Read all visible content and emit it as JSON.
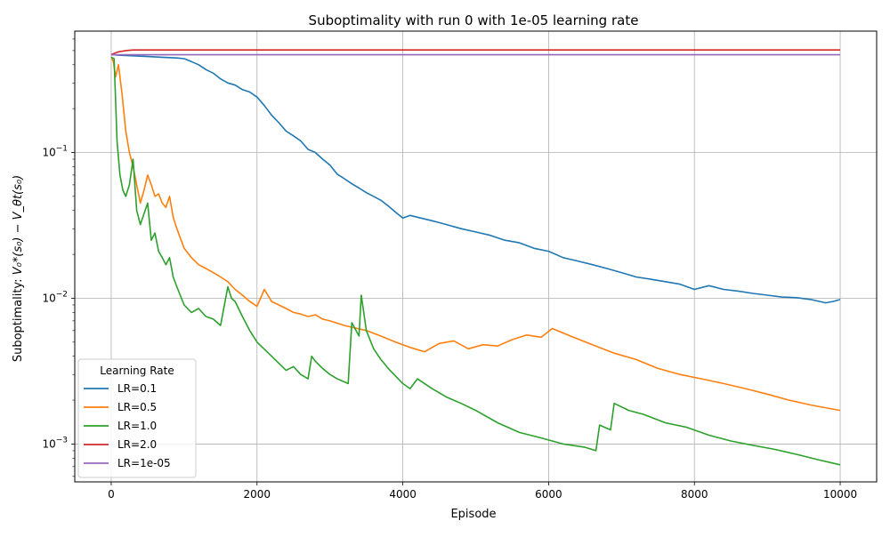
{
  "chart_data": {
    "type": "line",
    "title": "Suboptimality with run 0 with 1e-05 learning rate",
    "xlabel": "Episode",
    "ylabel_parts": {
      "prefix": "Suboptimality: ",
      "formula": "V₀*(s₀) − V_θt(s₀)"
    },
    "x_ticks": [
      0,
      2000,
      4000,
      6000,
      8000,
      10000
    ],
    "x_tick_labels": [
      "0",
      "2000",
      "4000",
      "6000",
      "8000",
      "10000"
    ],
    "y_scale": "log",
    "y_ticks": [
      0.001,
      0.01,
      0.1
    ],
    "y_tick_labels": [
      {
        "base": "10",
        "exp": "−3"
      },
      {
        "base": "10",
        "exp": "−2"
      },
      {
        "base": "10",
        "exp": "−1"
      }
    ],
    "xlim": [
      -500,
      10500
    ],
    "ylim": [
      0.00055,
      0.68
    ],
    "grid": true,
    "legend": {
      "title": "Learning Rate",
      "placement": "lower-left"
    },
    "series": [
      {
        "name": "LR=0.1",
        "color": "#1f77b4",
        "x": [
          0,
          100,
          300,
          500,
          700,
          900,
          1000,
          1100,
          1200,
          1300,
          1400,
          1500,
          1600,
          1700,
          1800,
          1900,
          2000,
          2100,
          2200,
          2300,
          2400,
          2500,
          2600,
          2700,
          2800,
          2900,
          3000,
          3100,
          3200,
          3300,
          3400,
          3500,
          3600,
          3700,
          3800,
          3900,
          4000,
          4100,
          4200,
          4300,
          4400,
          4500,
          4600,
          4800,
          5000,
          5200,
          5400,
          5600,
          5800,
          6000,
          6200,
          6400,
          6600,
          6800,
          7000,
          7200,
          7400,
          7600,
          7800,
          8000,
          8200,
          8400,
          8600,
          8800,
          9000,
          9200,
          9400,
          9600,
          9800,
          9900,
          10000
        ],
        "y": [
          0.47,
          0.465,
          0.46,
          0.455,
          0.45,
          0.445,
          0.44,
          0.42,
          0.4,
          0.37,
          0.35,
          0.32,
          0.3,
          0.29,
          0.27,
          0.26,
          0.24,
          0.21,
          0.18,
          0.16,
          0.14,
          0.13,
          0.12,
          0.105,
          0.1,
          0.09,
          0.082,
          0.071,
          0.066,
          0.061,
          0.057,
          0.053,
          0.05,
          0.047,
          0.043,
          0.039,
          0.0355,
          0.037,
          0.036,
          0.035,
          0.034,
          0.033,
          0.032,
          0.03,
          0.0285,
          0.027,
          0.025,
          0.024,
          0.022,
          0.021,
          0.019,
          0.018,
          0.017,
          0.016,
          0.015,
          0.014,
          0.0135,
          0.013,
          0.0125,
          0.0115,
          0.0122,
          0.0115,
          0.0112,
          0.0108,
          0.0105,
          0.0102,
          0.0101,
          0.0098,
          0.0093,
          0.0095,
          0.0098
        ]
      },
      {
        "name": "LR=0.5",
        "color": "#ff7f0e",
        "x": [
          0,
          30,
          60,
          100,
          150,
          200,
          250,
          300,
          350,
          400,
          450,
          500,
          550,
          600,
          650,
          700,
          750,
          800,
          850,
          900,
          1000,
          1100,
          1200,
          1300,
          1400,
          1500,
          1600,
          1700,
          1800,
          1900,
          2000,
          2100,
          2200,
          2300,
          2400,
          2500,
          2600,
          2700,
          2800,
          2900,
          3000,
          3200,
          3500,
          3700,
          3900,
          4100,
          4300,
          4500,
          4700,
          4900,
          5100,
          5300,
          5500,
          5700,
          5900,
          6050,
          6300,
          6600,
          6900,
          7200,
          7500,
          7800,
          8100,
          8400,
          8700,
          9000,
          9300,
          9600,
          10000
        ],
        "y": [
          0.45,
          0.42,
          0.33,
          0.4,
          0.25,
          0.14,
          0.1,
          0.08,
          0.06,
          0.045,
          0.055,
          0.07,
          0.06,
          0.05,
          0.052,
          0.045,
          0.042,
          0.05,
          0.036,
          0.03,
          0.022,
          0.019,
          0.017,
          0.016,
          0.015,
          0.014,
          0.013,
          0.0115,
          0.0105,
          0.0095,
          0.0088,
          0.0115,
          0.0095,
          0.009,
          0.0085,
          0.008,
          0.0078,
          0.0075,
          0.0077,
          0.0072,
          0.007,
          0.0065,
          0.006,
          0.0055,
          0.005,
          0.0046,
          0.0043,
          0.0049,
          0.0051,
          0.0045,
          0.0048,
          0.0047,
          0.0052,
          0.0056,
          0.0054,
          0.0062,
          0.0055,
          0.0048,
          0.0042,
          0.0038,
          0.0033,
          0.003,
          0.0028,
          0.0026,
          0.0024,
          0.0022,
          0.002,
          0.00185,
          0.0017
        ]
      },
      {
        "name": "LR=1.0",
        "color": "#2ca02c",
        "x": [
          0,
          40,
          80,
          120,
          160,
          200,
          250,
          300,
          350,
          400,
          450,
          500,
          550,
          600,
          650,
          700,
          750,
          800,
          850,
          900,
          1000,
          1100,
          1200,
          1300,
          1400,
          1500,
          1600,
          1650,
          1700,
          1800,
          1900,
          2000,
          2200,
          2400,
          2500,
          2600,
          2700,
          2750,
          2800,
          2900,
          3000,
          3100,
          3250,
          3300,
          3400,
          3430,
          3500,
          3600,
          3700,
          3800,
          4000,
          4100,
          4200,
          4400,
          4600,
          4800,
          5000,
          5300,
          5600,
          5900,
          6200,
          6500,
          6650,
          6700,
          6850,
          6900,
          7100,
          7300,
          7600,
          7900,
          8200,
          8500,
          8800,
          9100,
          9400,
          9700,
          10000
        ],
        "y": [
          0.45,
          0.44,
          0.12,
          0.07,
          0.055,
          0.05,
          0.06,
          0.09,
          0.04,
          0.032,
          0.038,
          0.045,
          0.025,
          0.028,
          0.021,
          0.019,
          0.017,
          0.019,
          0.014,
          0.012,
          0.009,
          0.008,
          0.0085,
          0.0075,
          0.0072,
          0.0065,
          0.012,
          0.01,
          0.0095,
          0.0075,
          0.006,
          0.005,
          0.004,
          0.0032,
          0.0034,
          0.003,
          0.0028,
          0.004,
          0.0037,
          0.0033,
          0.003,
          0.0028,
          0.0026,
          0.0068,
          0.0055,
          0.0105,
          0.006,
          0.0045,
          0.0038,
          0.0033,
          0.0026,
          0.0024,
          0.0028,
          0.0024,
          0.0021,
          0.0019,
          0.0017,
          0.0014,
          0.0012,
          0.0011,
          0.001,
          0.00095,
          0.0009,
          0.00135,
          0.00125,
          0.0019,
          0.0017,
          0.0016,
          0.0014,
          0.0013,
          0.00115,
          0.00105,
          0.00098,
          0.00092,
          0.00085,
          0.00078,
          0.00072
        ]
      },
      {
        "name": "LR=2.0",
        "color": "#d62728",
        "x": [
          0,
          50,
          100,
          200,
          300,
          500,
          10000
        ],
        "y": [
          0.47,
          0.48,
          0.49,
          0.5,
          0.505,
          0.505,
          0.505
        ]
      },
      {
        "name": "LR=1e-05",
        "color": "#9467bd",
        "x": [
          0,
          10000
        ],
        "y": [
          0.468,
          0.468
        ]
      }
    ]
  }
}
